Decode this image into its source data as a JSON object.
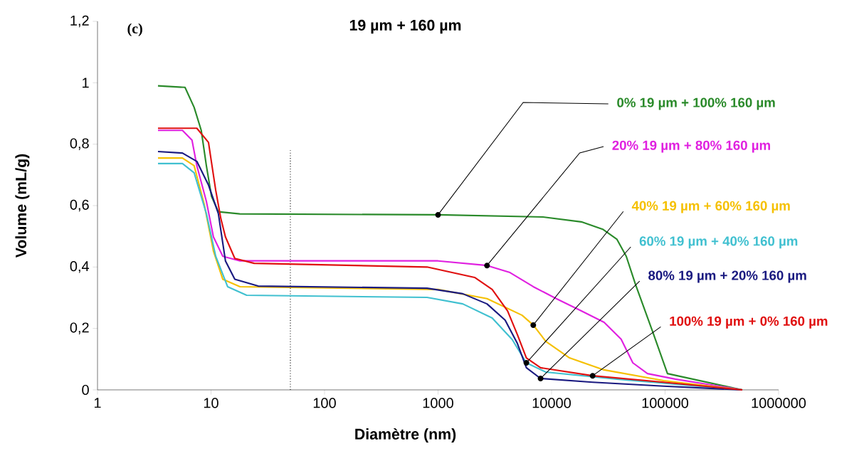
{
  "chart_data": {
    "type": "line",
    "title": "19 µm + 160 µm",
    "xlabel": "Diamètre (nm)",
    "ylabel": "Volume (mL/g)",
    "annotations": [
      "(c)"
    ],
    "log": "x",
    "xlim": [
      1,
      1000000
    ],
    "xticks": [
      1,
      10,
      100,
      1000,
      10000,
      100000,
      1000000
    ],
    "ylim": [
      0,
      1.2
    ],
    "yticks": [
      0,
      {
        "value": 0.2,
        "label": "0,2"
      },
      {
        "value": 0.4,
        "label": "0,4"
      },
      {
        "value": 0.6,
        "label": "0,6"
      },
      {
        "value": 0.8,
        "label": "0,8"
      },
      1,
      {
        "value": 1.2,
        "label": "1,2"
      }
    ],
    "ref_lines": [
      {
        "axis": "x",
        "value": 50,
        "color": "#000000",
        "line_style": "dotted"
      }
    ],
    "series": [
      {
        "name": "0% 19 µm + 100% 160 µm",
        "color": "#2a8a2a",
        "x": [
          3.41,
          5.9,
          7.1,
          8.2,
          9.1,
          10.1,
          11.6,
          17.9,
          1000,
          8400,
          18300,
          28200,
          37700,
          45500,
          54900,
          77600,
          105000,
          479000
        ],
        "values": [
          0.99,
          0.985,
          0.92,
          0.845,
          0.73,
          0.63,
          0.58,
          0.573,
          0.57,
          0.563,
          0.547,
          0.523,
          0.49,
          0.435,
          0.343,
          0.19,
          0.053,
          0
        ]
      },
      {
        "name": "20% 19 µm + 80% 160 µm",
        "color": "#e020e0",
        "x": [
          3.41,
          5.6,
          6.8,
          7.5,
          9.1,
          10.5,
          12.7,
          18,
          1000,
          2700,
          4300,
          6900,
          11000,
          18300,
          29000,
          41000,
          52000,
          70000,
          123000,
          479000
        ],
        "values": [
          0.845,
          0.845,
          0.813,
          0.73,
          0.614,
          0.498,
          0.435,
          0.42,
          0.42,
          0.405,
          0.382,
          0.336,
          0.297,
          0.257,
          0.22,
          0.165,
          0.088,
          0.053,
          0.035,
          0
        ]
      },
      {
        "name": "40% 19 µm + 60% 160 µm",
        "color": "#f5c000",
        "x": [
          3.41,
          5.6,
          7.1,
          8.7,
          10.5,
          12.7,
          18,
          1000,
          2700,
          5500,
          6900,
          8900,
          14400,
          29000,
          97000,
          479000
        ],
        "values": [
          0.755,
          0.755,
          0.73,
          0.605,
          0.452,
          0.36,
          0.336,
          0.327,
          0.297,
          0.243,
          0.211,
          0.158,
          0.104,
          0.065,
          0.03,
          0
        ]
      },
      {
        "name": "60% 19 µm + 40% 160 µm",
        "color": "#40c0d0",
        "x": [
          3.41,
          5.6,
          7.1,
          9.1,
          11,
          14,
          20.6,
          800,
          1650,
          3000,
          4500,
          6000,
          8900,
          37700,
          479000
        ],
        "values": [
          0.737,
          0.737,
          0.707,
          0.574,
          0.435,
          0.336,
          0.308,
          0.301,
          0.28,
          0.234,
          0.164,
          0.088,
          0.058,
          0.035,
          0
        ]
      },
      {
        "name": "80% 19 µm + 20% 160 µm",
        "color": "#1a1a80",
        "x": [
          3.41,
          5.6,
          7.5,
          9.5,
          11.6,
          13.4,
          16.2,
          26,
          800,
          1650,
          2700,
          3900,
          5000,
          6000,
          8000,
          23000,
          97000,
          479000
        ],
        "values": [
          0.776,
          0.771,
          0.744,
          0.667,
          0.574,
          0.42,
          0.36,
          0.338,
          0.331,
          0.313,
          0.28,
          0.227,
          0.151,
          0.072,
          0.037,
          0.025,
          0.012,
          0
        ]
      },
      {
        "name": "100% 19 µm + 0% 160 µm",
        "color": "#e01010",
        "x": [
          3.41,
          7.5,
          9.5,
          10.2,
          11,
          12.2,
          13.4,
          16.2,
          24,
          800,
          2100,
          3000,
          4100,
          5000,
          6000,
          8000,
          23000,
          97000,
          479000
        ],
        "values": [
          0.852,
          0.852,
          0.806,
          0.73,
          0.65,
          0.558,
          0.498,
          0.428,
          0.412,
          0.4,
          0.366,
          0.327,
          0.257,
          0.18,
          0.104,
          0.072,
          0.046,
          0.025,
          0
        ]
      }
    ]
  }
}
